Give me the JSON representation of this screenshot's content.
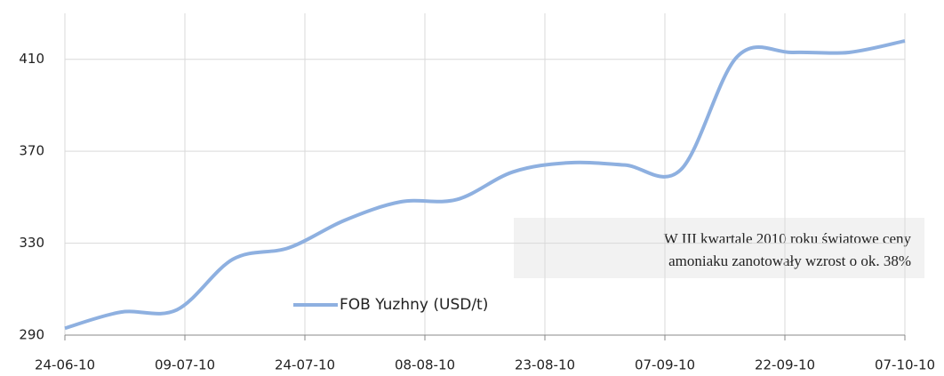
{
  "chart_data": {
    "type": "line",
    "x": [
      "24-06-10",
      "01-07-10",
      "08-07-10",
      "15-07-10",
      "22-07-10",
      "29-07-10",
      "05-08-10",
      "12-08-10",
      "19-08-10",
      "26-08-10",
      "02-09-10",
      "09-09-10",
      "16-09-10",
      "23-09-10",
      "30-09-10",
      "07-10-10"
    ],
    "series": [
      {
        "name": "FOB Yuzhny (USD/t)",
        "color": "#8eb0e0",
        "values": [
          293,
          300,
          301,
          323,
          328,
          340,
          348,
          349,
          361,
          365,
          364,
          362,
          411,
          413,
          413,
          418
        ]
      }
    ],
    "xlim": [
      "24-06-10",
      "07-10-10"
    ],
    "xticks": [
      "24-06-10",
      "09-07-10",
      "24-07-10",
      "08-08-10",
      "23-08-10",
      "07-09-10",
      "22-09-10",
      "07-10-10"
    ],
    "ylim": [
      290,
      430
    ],
    "yticks": [
      290,
      330,
      370,
      410
    ],
    "grid": true,
    "annotation": [
      "W III kwartale 2010 roku światowe ceny",
      "amoniaku zanotowały wzrost o ok. 38%"
    ]
  }
}
